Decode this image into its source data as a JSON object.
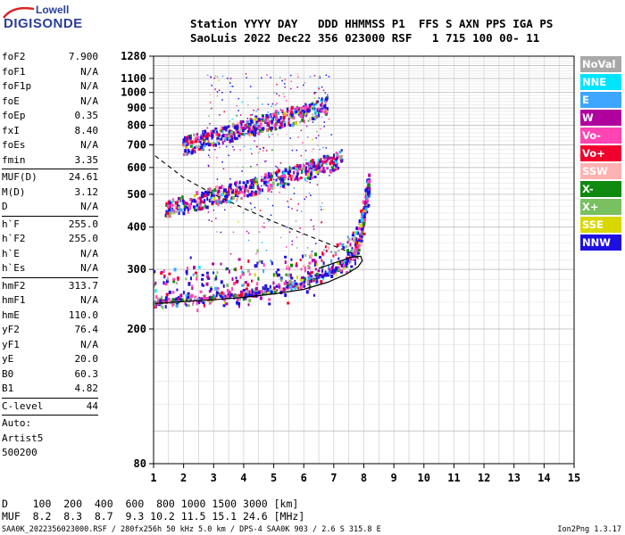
{
  "logo": {
    "line1": "Lowell",
    "line2": "DIGISONDE"
  },
  "header": {
    "line1": "Station YYYY DAY   DDD HHMMSS P1  FFS S AXN PPS IGA PS",
    "line2": "SaoLuis 2022 Dec22 356 023000 RSF   1 715 100 00- 11"
  },
  "params": [
    {
      "k": "foF2",
      "v": "7.900"
    },
    {
      "k": "foF1",
      "v": "N/A"
    },
    {
      "k": "foF1p",
      "v": "N/A"
    },
    {
      "k": "foE",
      "v": "N/A"
    },
    {
      "k": "foEp",
      "v": "0.35"
    },
    {
      "k": "fxI",
      "v": "8.40"
    },
    {
      "k": "foEs",
      "v": "N/A"
    },
    {
      "k": "fmin",
      "v": "3.35"
    },
    {
      "sep": true
    },
    {
      "k": "MUF(D)",
      "v": "24.61"
    },
    {
      "k": "M(D)",
      "v": "3.12"
    },
    {
      "k": "D",
      "v": "N/A"
    },
    {
      "sep": true
    },
    {
      "k": "h`F",
      "v": "255.0"
    },
    {
      "k": "h`F2",
      "v": "255.0"
    },
    {
      "k": "h`E",
      "v": "N/A"
    },
    {
      "k": "h`Es",
      "v": "N/A"
    },
    {
      "sep": true
    },
    {
      "k": "hmF2",
      "v": "313.7"
    },
    {
      "k": "hmF1",
      "v": "N/A"
    },
    {
      "k": "hmE",
      "v": "110.0"
    },
    {
      "k": "yF2",
      "v": "76.4"
    },
    {
      "k": "yF1",
      "v": "N/A"
    },
    {
      "k": "yE",
      "v": "20.0"
    },
    {
      "k": "B0",
      "v": "60.3"
    },
    {
      "k": "B1",
      "v": "4.82"
    },
    {
      "sep": true
    },
    {
      "k": "C-level",
      "v": "44"
    },
    {
      "sep": true
    },
    {
      "t": "Auto:"
    },
    {
      "t": "Artist5"
    },
    {
      "t": "500200"
    }
  ],
  "legend": [
    {
      "label": "NoVal",
      "bg": "#a8a8a8",
      "fg": "#ffffff"
    },
    {
      "label": "NNE",
      "bg": "#00e5ff",
      "fg": "#ffffff"
    },
    {
      "label": "E",
      "bg": "#3da6ff",
      "fg": "#ffffff"
    },
    {
      "label": "W",
      "bg": "#b0009e",
      "fg": "#ffffff"
    },
    {
      "label": "Vo-",
      "bg": "#ff44b4",
      "fg": "#ffffff"
    },
    {
      "label": "Vo+",
      "bg": "#f0002d",
      "fg": "#ffffff"
    },
    {
      "label": "SSW",
      "bg": "#ffb2b2",
      "fg": "#ffffff"
    },
    {
      "label": "X-",
      "bg": "#0f8a0f",
      "fg": "#ffffff"
    },
    {
      "label": "X+",
      "bg": "#78c060",
      "fg": "#ffffff"
    },
    {
      "label": "SSE",
      "bg": "#d8d800",
      "fg": "#ffffff"
    },
    {
      "label": "NNW",
      "bg": "#1e10e0",
      "fg": "#ffffff"
    }
  ],
  "muf_table": {
    "line1": "D    100  200  400  600  800 1000 1500 3000 [km]",
    "line2": "MUF  8.2  8.3  8.7  9.3 10.2 11.5 15.1 24.6 [MHz]"
  },
  "footer": {
    "left": "SAA0K_2022356023000.RSF / 280fx256h 50 kHz 5.0 km / DPS-4 SAA0K 903 / 2.6 S 315.8 E",
    "right": "Ion2Png 1.3.17"
  },
  "chart_data": {
    "type": "scatter",
    "title": "",
    "xlabel": "",
    "ylabel": "",
    "xlim": [
      1,
      15
    ],
    "ylim": [
      80,
      1280
    ],
    "y_scale": "log",
    "x_ticks": [
      1,
      2,
      3,
      4,
      5,
      6,
      7,
      8,
      9,
      10,
      11,
      12,
      13,
      14,
      15
    ],
    "y_ticks": [
      80,
      200,
      300,
      400,
      500,
      600,
      700,
      800,
      900,
      1000,
      1100,
      1280
    ],
    "grid": true,
    "legend_position": "right",
    "series": [
      {
        "name": "NNW",
        "color": "#1e10e0"
      },
      {
        "name": "W",
        "color": "#b0009e"
      },
      {
        "name": "Vo-",
        "color": "#ff44b4"
      },
      {
        "name": "Vo+",
        "color": "#f0002d"
      },
      {
        "name": "X-",
        "color": "#0f8a0f"
      },
      {
        "name": "X+",
        "color": "#78c060"
      },
      {
        "name": "E",
        "color": "#3da6ff"
      },
      {
        "name": "NNE",
        "color": "#00e5ff"
      },
      {
        "name": "SSE",
        "color": "#d8d800"
      },
      {
        "name": "SSW",
        "color": "#ffb2b2"
      },
      {
        "name": "NoVal",
        "color": "#a8a8a8"
      }
    ],
    "echo_traces": [
      {
        "name": "O-trace 1st hop",
        "points": [
          [
            1.0,
            238
          ],
          [
            1.5,
            240
          ],
          [
            2.0,
            243
          ],
          [
            2.5,
            245
          ],
          [
            3.0,
            247
          ],
          [
            3.5,
            250
          ],
          [
            4.0,
            252
          ],
          [
            4.5,
            256
          ],
          [
            5.0,
            260
          ],
          [
            5.5,
            266
          ],
          [
            6.0,
            273
          ],
          [
            6.5,
            283
          ],
          [
            7.0,
            296
          ],
          [
            7.4,
            312
          ],
          [
            7.7,
            335
          ],
          [
            7.9,
            365
          ],
          [
            8.0,
            410
          ],
          [
            8.1,
            470
          ],
          [
            8.2,
            525
          ]
        ]
      },
      {
        "name": "2nd hop",
        "points": [
          [
            1.4,
            452
          ],
          [
            2.0,
            466
          ],
          [
            2.5,
            478
          ],
          [
            3.0,
            492
          ],
          [
            3.5,
            505
          ],
          [
            4.0,
            518
          ],
          [
            4.5,
            532
          ],
          [
            5.0,
            550
          ],
          [
            5.5,
            566
          ],
          [
            6.0,
            584
          ],
          [
            6.5,
            603
          ],
          [
            7.0,
            624
          ],
          [
            7.3,
            646
          ]
        ]
      },
      {
        "name": "3rd hop",
        "points": [
          [
            2.0,
            690
          ],
          [
            2.5,
            716
          ],
          [
            3.0,
            735
          ],
          [
            3.5,
            758
          ],
          [
            4.0,
            778
          ],
          [
            4.5,
            802
          ],
          [
            5.0,
            826
          ],
          [
            5.5,
            846
          ],
          [
            6.0,
            868
          ],
          [
            6.5,
            895
          ],
          [
            6.8,
            920
          ]
        ]
      }
    ],
    "profile_curve": [
      [
        1.05,
        238
      ],
      [
        2.0,
        241
      ],
      [
        3.0,
        244
      ],
      [
        4.0,
        248
      ],
      [
        5.0,
        254
      ],
      [
        6.0,
        262
      ],
      [
        6.8,
        275
      ],
      [
        7.4,
        290
      ],
      [
        7.8,
        305
      ],
      [
        7.95,
        318
      ],
      [
        7.9,
        328
      ],
      [
        7.6,
        326
      ],
      [
        7.0,
        313
      ],
      [
        6.5,
        302
      ]
    ],
    "dashed_curve": [
      [
        1.05,
        650
      ],
      [
        2.0,
        560
      ],
      [
        3.0,
        500
      ],
      [
        4.0,
        455
      ],
      [
        5.0,
        415
      ],
      [
        6.0,
        382
      ],
      [
        7.0,
        352
      ],
      [
        7.6,
        335
      ],
      [
        7.9,
        318
      ]
    ]
  }
}
